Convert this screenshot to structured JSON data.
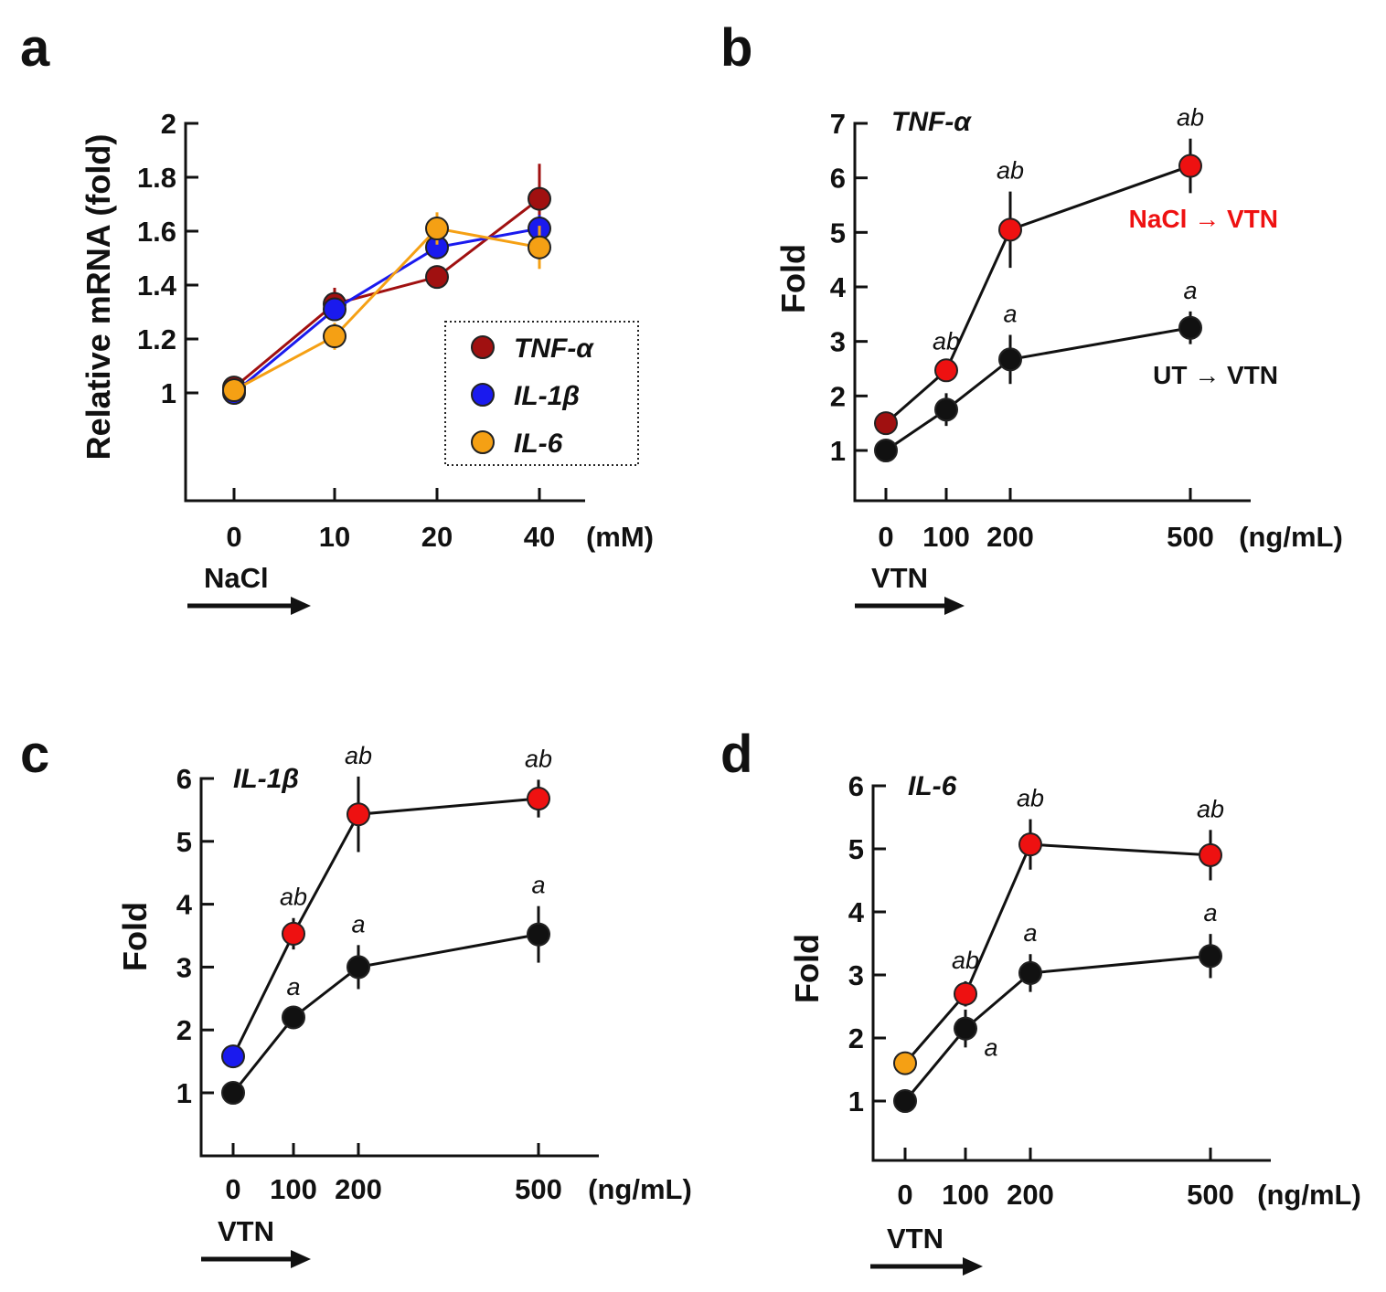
{
  "chart_data": [
    {
      "panel": "a",
      "type": "line",
      "ylabel": "Relative mRNA (fold)",
      "x_categories": [
        "0",
        "10",
        "20",
        "40"
      ],
      "x_unit": "(mM)",
      "treatment": "NaCl",
      "yticks": [
        "2",
        "1.8",
        "1.6",
        "1.4",
        "1.2",
        "1"
      ],
      "ylim": [
        0.6,
        2.0
      ],
      "series": [
        {
          "name": "TNF-α",
          "color": "#a01010",
          "values": [
            1.02,
            1.33,
            1.43,
            1.72
          ],
          "errors": [
            0.02,
            0.06,
            0.04,
            0.13
          ]
        },
        {
          "name": "IL-1β",
          "color": "#1a1aee",
          "values": [
            1.0,
            1.31,
            1.54,
            1.61
          ],
          "errors": [
            0.02,
            0.04,
            0.04,
            0.05
          ]
        },
        {
          "name": "IL-6",
          "color": "#f5a014",
          "values": [
            1.01,
            1.21,
            1.61,
            1.54
          ],
          "errors": [
            0.02,
            0.05,
            0.06,
            0.08
          ]
        }
      ],
      "legend_position": "lower-right"
    },
    {
      "panel": "b",
      "type": "line",
      "gene": "TNF-α",
      "ylabel": "Fold",
      "x_categories": [
        "0",
        "100",
        "200",
        "500"
      ],
      "x_values": [
        0,
        100,
        200,
        500
      ],
      "x_unit": "(ng/mL)",
      "treatment": "VTN",
      "yticks": [
        "7",
        "6",
        "5",
        "4",
        "3",
        "2",
        "1"
      ],
      "ylim": [
        0.1,
        7
      ],
      "series": [
        {
          "name": "NaCl → VTN",
          "color": "#ee1111",
          "first_color": "#a01010",
          "values": [
            1.5,
            2.47,
            5.05,
            6.22
          ],
          "errors": [
            0,
            0,
            0.7,
            0.5
          ],
          "sig": [
            "",
            "ab",
            "ab",
            "ab"
          ]
        },
        {
          "name": "UT → VTN",
          "color": "#111111",
          "values": [
            1.0,
            1.75,
            2.67,
            3.25
          ],
          "errors": [
            0,
            0.3,
            0.45,
            0.3
          ],
          "sig": [
            "",
            "",
            "a",
            "a"
          ]
        }
      ]
    },
    {
      "panel": "c",
      "type": "line",
      "gene": "IL-1β",
      "ylabel": "Fold",
      "x_categories": [
        "0",
        "100",
        "200",
        "500"
      ],
      "x_values": [
        0,
        100,
        200,
        500
      ],
      "x_unit": "(ng/mL)",
      "treatment": "VTN",
      "yticks": [
        "6",
        "5",
        "4",
        "3",
        "2",
        "1"
      ],
      "ylim": [
        0,
        6
      ],
      "series": [
        {
          "name": "NaCl → VTN",
          "color": "#ee1111",
          "first_color": "#1a1aee",
          "values": [
            1.58,
            3.53,
            5.43,
            5.68
          ],
          "errors": [
            0,
            0.25,
            0.6,
            0.3
          ],
          "sig": [
            "",
            "ab",
            "ab",
            "ab"
          ]
        },
        {
          "name": "UT → VTN",
          "color": "#111111",
          "values": [
            1.0,
            2.2,
            3.0,
            3.52
          ],
          "errors": [
            0,
            0,
            0.35,
            0.45
          ],
          "sig": [
            "",
            "a",
            "a",
            "a"
          ]
        }
      ]
    },
    {
      "panel": "d",
      "type": "line",
      "gene": "IL-6",
      "ylabel": "Fold",
      "x_categories": [
        "0",
        "100",
        "200",
        "500"
      ],
      "x_values": [
        0,
        100,
        200,
        500
      ],
      "x_unit": "(ng/mL)",
      "treatment": "VTN",
      "yticks": [
        "6",
        "5",
        "4",
        "3",
        "2",
        "1"
      ],
      "ylim": [
        0.05,
        6
      ],
      "series": [
        {
          "name": "NaCl → VTN",
          "color": "#ee1111",
          "first_color": "#f5a014",
          "values": [
            1.6,
            2.7,
            5.07,
            4.9
          ],
          "errors": [
            0,
            0.2,
            0.4,
            0.4
          ],
          "sig": [
            "",
            "ab",
            "ab",
            "ab"
          ]
        },
        {
          "name": "UT → VTN",
          "color": "#111111",
          "values": [
            1.0,
            2.15,
            3.03,
            3.3
          ],
          "errors": [
            0,
            0.3,
            0.3,
            0.35
          ],
          "sig": [
            "",
            "a",
            "a",
            "a"
          ]
        }
      ]
    }
  ]
}
